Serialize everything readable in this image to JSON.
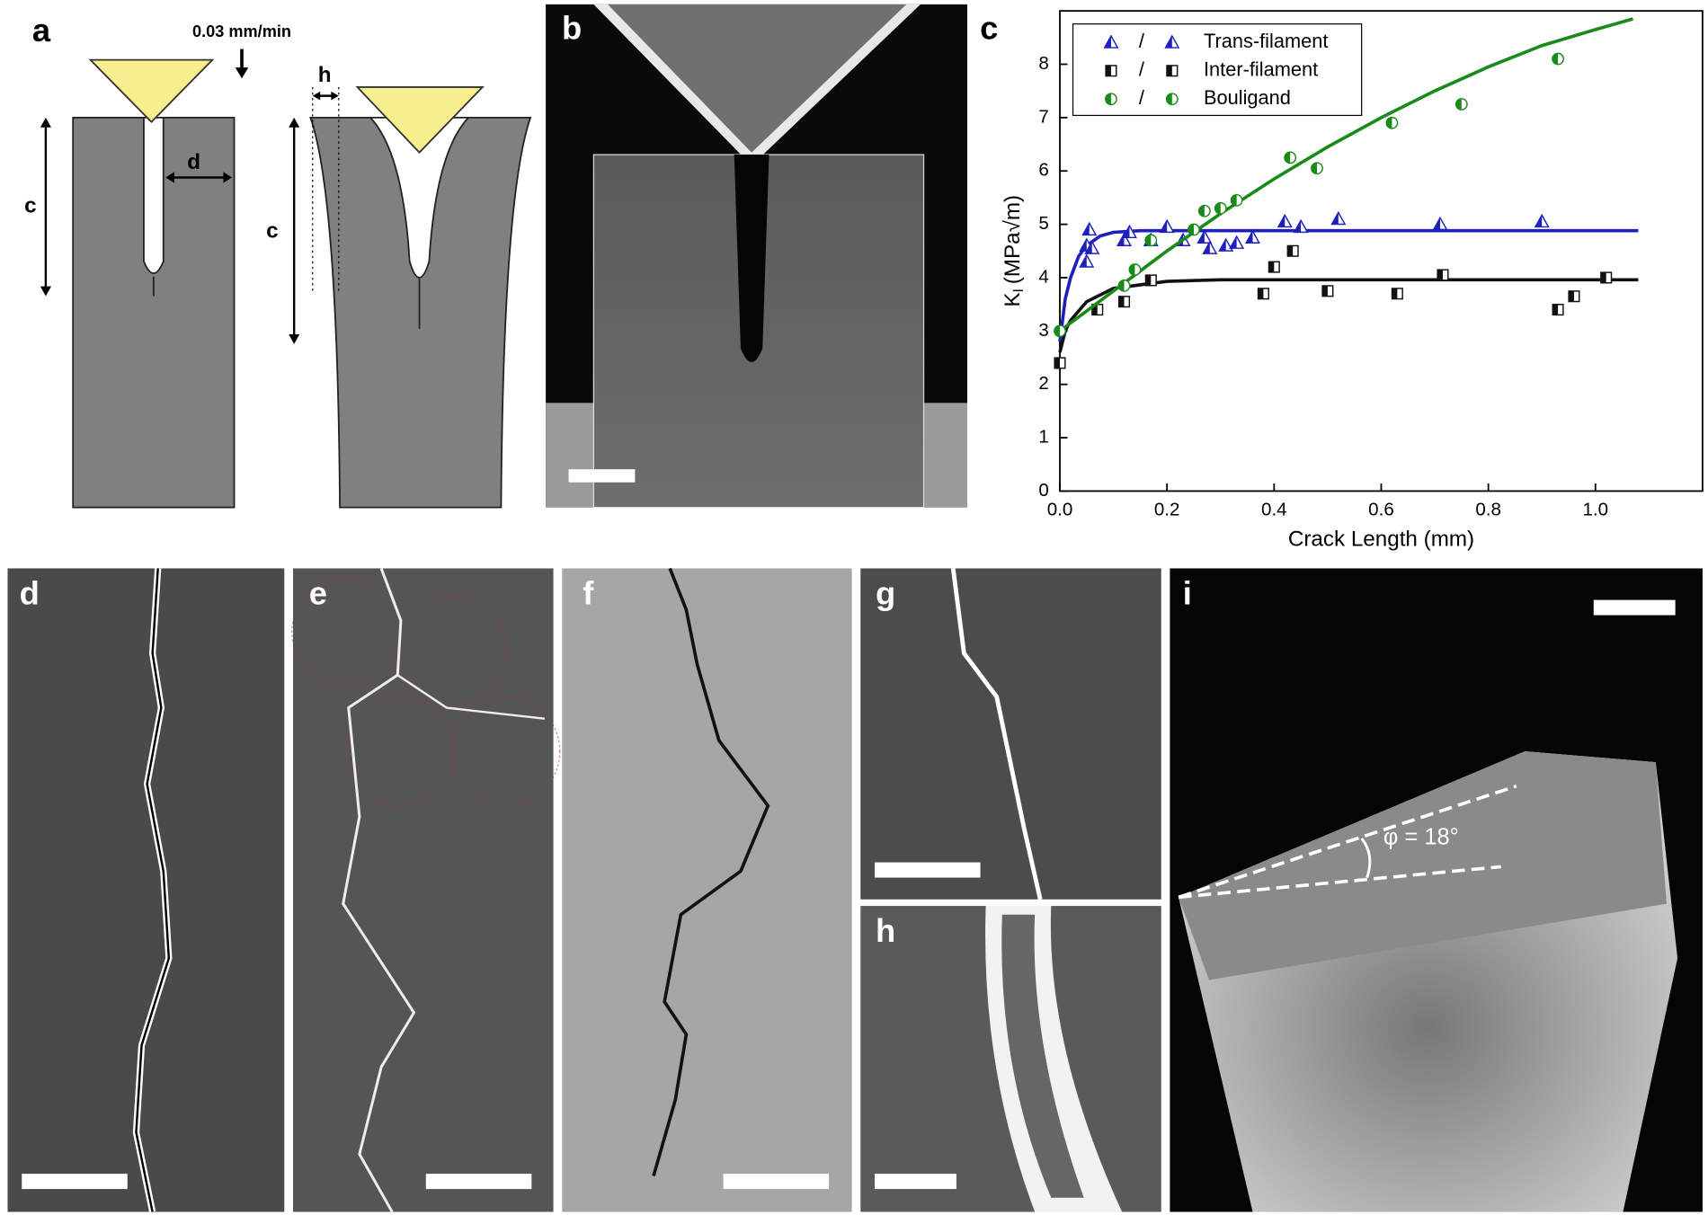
{
  "panel_labels": [
    "a",
    "b",
    "c",
    "d",
    "e",
    "f",
    "g",
    "h",
    "i"
  ],
  "panel_a": {
    "rate": "0.03 mm/min",
    "d": "d",
    "c_left": "c",
    "h": "h",
    "c_right": "c"
  },
  "panel_i": {
    "angle": "φ = 18°"
  },
  "chart_data": {
    "type": "scatter",
    "x_label": "Crack Length (mm)",
    "y_label": {
      "main": "K",
      "sub": "I",
      "unit": "(MPa√m)"
    },
    "xlim": [
      0,
      1.2
    ],
    "ylim": [
      0,
      9
    ],
    "xticks": [
      {
        "value": 0,
        "label": "0.0"
      },
      {
        "value": 0.2,
        "label": "0.2"
      },
      {
        "value": 0.4,
        "label": "0.4"
      },
      {
        "value": 0.6,
        "label": "0.6"
      },
      {
        "value": 0.8,
        "label": "0.8"
      },
      {
        "value": 1.0,
        "label": "1.0"
      }
    ],
    "yticks": [
      0,
      1,
      2,
      3,
      4,
      5,
      6,
      7,
      8
    ],
    "legend": "upper left",
    "legend_separator": "/",
    "series": [
      {
        "name": "Trans-filament",
        "color": "#1f1fbf",
        "marker": "triangle",
        "x": [
          0.05,
          0.05,
          0.055,
          0.06,
          0.12,
          0.13,
          0.2,
          0.17,
          0.23,
          0.27,
          0.28,
          0.31,
          0.33,
          0.36,
          0.42,
          0.45,
          0.52,
          0.71,
          0.9
        ],
        "values": [
          4.3,
          4.6,
          4.9,
          4.55,
          4.7,
          4.85,
          4.95,
          4.7,
          4.7,
          4.75,
          4.55,
          4.6,
          4.65,
          4.75,
          5.05,
          4.95,
          5.1,
          5.0,
          5.05
        ],
        "fit": {
          "x": [
            0,
            0.01,
            0.02,
            0.035,
            0.05,
            0.075,
            0.1,
            0.15,
            1.08
          ],
          "y": [
            2.8,
            3.6,
            4.0,
            4.4,
            4.6,
            4.78,
            4.85,
            4.88,
            4.88
          ]
        }
      },
      {
        "name": "Inter-filament",
        "color": "#111111",
        "marker": "square",
        "x": [
          0.0,
          0.07,
          0.12,
          0.17,
          0.38,
          0.4,
          0.435,
          0.5,
          0.63,
          0.715,
          0.93,
          0.96,
          1.02
        ],
        "values": [
          2.4,
          3.4,
          3.55,
          3.95,
          3.7,
          4.2,
          4.5,
          3.75,
          3.7,
          4.05,
          3.4,
          3.65,
          4.0
        ],
        "fit": {
          "x": [
            0,
            0.01,
            0.02,
            0.05,
            0.1,
            0.2,
            0.3,
            1.08
          ],
          "y": [
            2.6,
            3.0,
            3.2,
            3.55,
            3.8,
            3.93,
            3.96,
            3.96
          ]
        }
      },
      {
        "name": "Bouligand",
        "color": "#1a8a1a",
        "marker": "circle",
        "x": [
          0.0,
          0.12,
          0.14,
          0.17,
          0.25,
          0.27,
          0.3,
          0.33,
          0.43,
          0.48,
          0.62,
          0.75,
          0.93
        ],
        "values": [
          3.0,
          3.85,
          4.15,
          4.7,
          4.9,
          5.25,
          5.3,
          5.45,
          6.25,
          6.05,
          6.9,
          7.25,
          8.1
        ],
        "fit": {
          "x": [
            0,
            0.1,
            0.2,
            0.3,
            0.4,
            0.5,
            0.6,
            0.7,
            0.8,
            0.9,
            1.0,
            1.07
          ],
          "y": [
            3.0,
            3.75,
            4.5,
            5.2,
            5.85,
            6.45,
            7.0,
            7.5,
            7.95,
            8.35,
            8.65,
            8.85
          ]
        }
      }
    ]
  }
}
